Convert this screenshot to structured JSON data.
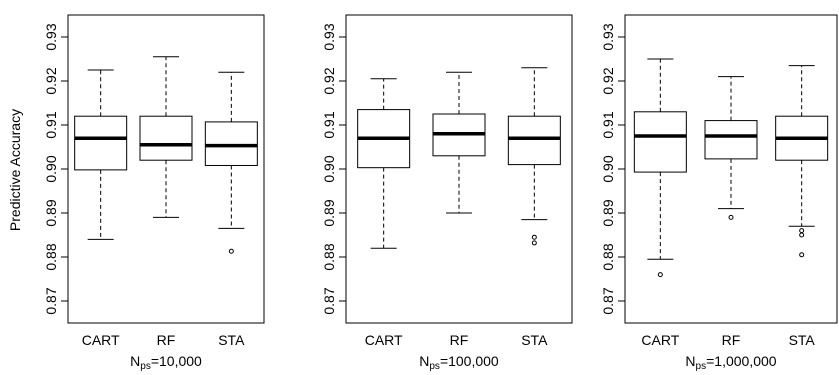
{
  "chart_data": [
    {
      "type": "box",
      "ylabel": "Predictive Accuracy",
      "xlabel_main": "N",
      "xlabel_sub": "ps",
      "xlabel_tail": "=10,000",
      "ylim": [
        0.865,
        0.935
      ],
      "yticks": [
        0.87,
        0.88,
        0.89,
        0.9,
        0.91,
        0.92,
        0.93
      ],
      "ytick_labels": [
        "0.87",
        "0.88",
        "0.89",
        "0.90",
        "0.91",
        "0.92",
        "0.93"
      ],
      "categories": [
        "CART",
        "RF",
        "STA"
      ],
      "boxes": [
        {
          "name": "CART",
          "whisker_low": 0.884,
          "q1": 0.8998,
          "median": 0.907,
          "q3": 0.912,
          "whisker_high": 0.9225,
          "outliers": []
        },
        {
          "name": "RF",
          "whisker_low": 0.889,
          "q1": 0.902,
          "median": 0.9055,
          "q3": 0.912,
          "whisker_high": 0.9255,
          "outliers": []
        },
        {
          "name": "STA",
          "whisker_low": 0.8865,
          "q1": 0.9008,
          "median": 0.9053,
          "q3": 0.9107,
          "whisker_high": 0.922,
          "outliers": [
            0.8813
          ]
        }
      ]
    },
    {
      "type": "box",
      "ylabel": "",
      "xlabel_main": "N",
      "xlabel_sub": "ps",
      "xlabel_tail": "=100,000",
      "ylim": [
        0.865,
        0.935
      ],
      "yticks": [
        0.87,
        0.88,
        0.89,
        0.9,
        0.91,
        0.92,
        0.93
      ],
      "ytick_labels": [
        "0.87",
        "0.88",
        "0.89",
        "0.90",
        "0.91",
        "0.92",
        "0.93"
      ],
      "categories": [
        "CART",
        "RF",
        "STA"
      ],
      "boxes": [
        {
          "name": "CART",
          "whisker_low": 0.882,
          "q1": 0.9003,
          "median": 0.907,
          "q3": 0.9135,
          "whisker_high": 0.9205,
          "outliers": []
        },
        {
          "name": "RF",
          "whisker_low": 0.89,
          "q1": 0.903,
          "median": 0.908,
          "q3": 0.9125,
          "whisker_high": 0.922,
          "outliers": []
        },
        {
          "name": "STA",
          "whisker_low": 0.8885,
          "q1": 0.901,
          "median": 0.907,
          "q3": 0.912,
          "whisker_high": 0.923,
          "outliers": [
            0.8845,
            0.8832
          ]
        }
      ]
    },
    {
      "type": "box",
      "ylabel": "",
      "xlabel_main": "N",
      "xlabel_sub": "ps",
      "xlabel_tail": "=1,000,000",
      "ylim": [
        0.865,
        0.935
      ],
      "yticks": [
        0.87,
        0.88,
        0.89,
        0.9,
        0.91,
        0.92,
        0.93
      ],
      "ytick_labels": [
        "0.87",
        "0.88",
        "0.89",
        "0.90",
        "0.91",
        "0.92",
        "0.93"
      ],
      "categories": [
        "CART",
        "RF",
        "STA"
      ],
      "boxes": [
        {
          "name": "CART",
          "whisker_low": 0.8795,
          "q1": 0.8993,
          "median": 0.9075,
          "q3": 0.913,
          "whisker_high": 0.925,
          "outliers": [
            0.876
          ]
        },
        {
          "name": "RF",
          "whisker_low": 0.891,
          "q1": 0.9023,
          "median": 0.9075,
          "q3": 0.911,
          "whisker_high": 0.921,
          "outliers": [
            0.889
          ]
        },
        {
          "name": "STA",
          "whisker_low": 0.887,
          "q1": 0.902,
          "median": 0.907,
          "q3": 0.912,
          "whisker_high": 0.9235,
          "outliers": [
            0.886,
            0.885,
            0.8805
          ]
        }
      ]
    }
  ]
}
